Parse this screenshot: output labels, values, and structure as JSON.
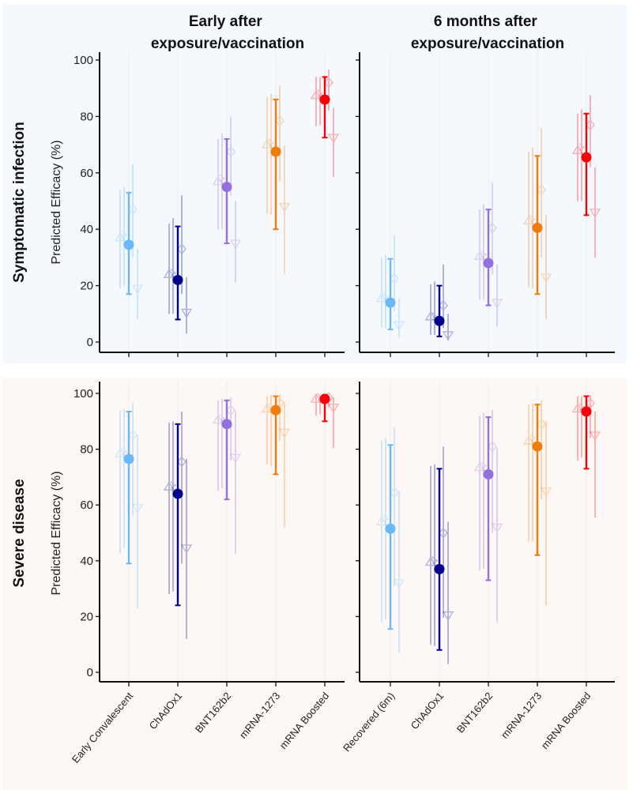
{
  "colors": {
    "row_backgrounds": [
      "#f5f9fe",
      "#fdf8f6"
    ],
    "groups": [
      "#6ab8f7",
      "#00008b",
      "#9370db",
      "#f07c0c",
      "#f80008"
    ]
  },
  "chart_data": {
    "type": "scatter",
    "subtype": "point-range (estimate with confidence interval), faceted 2x2",
    "column_titles": [
      "Early after\nexposure/vaccination",
      "6 months after\nexposure/vaccination"
    ],
    "row_titles": [
      "Symptomatic infection",
      "Severe disease"
    ],
    "ylabel": "Predicted Efficacy (%)",
    "ylim": [
      0,
      100
    ],
    "yticks": [
      0,
      20,
      40,
      60,
      80,
      100
    ],
    "grid": "faint vertical gridlines at categories",
    "marker_legend": {
      "main": "filled circle with capped error bar",
      "variant_1": "open up-triangle (faint)",
      "variant_2": "open arrow/x marker (faint)",
      "variant_3": "open diamond (faint)",
      "variant_4": "open down-triangle (faint)"
    },
    "panels": [
      {
        "row": "Symptomatic infection",
        "column": "Early after exposure/vaccination",
        "categories": [
          "Early Convalescent",
          "ChAdOx1",
          "BNT162b2",
          "mRNA-1273",
          "mRNA Boosted"
        ],
        "series": [
          {
            "name": "main",
            "values": [
              34.5,
              22,
              55,
              67.5,
              86
            ],
            "lower": [
              17,
              8,
              35,
              40,
              72.5
            ],
            "upper": [
              53,
              41,
              72,
              86,
              94
            ]
          },
          {
            "name": "variant_1",
            "values": [
              37,
              24,
              57,
              70,
              87.5
            ],
            "lower": [
              19,
              10,
              40,
              45.5,
              76.5
            ],
            "upper": [
              54,
              42,
              72,
              87,
              94
            ]
          },
          {
            "name": "variant_2",
            "values": [
              38,
              24.5,
              58,
              70.5,
              88
            ],
            "lower": [
              20,
              10,
              40,
              45,
              77
            ],
            "upper": [
              55,
              44,
              74,
              88,
              94
            ]
          },
          {
            "name": "variant_3",
            "values": [
              47,
              33,
              67.5,
              78.5,
              92
            ],
            "lower": [
              30,
              17,
              52,
              57,
              82
            ],
            "upper": [
              63,
              52,
              80,
              91,
              96.5
            ]
          },
          {
            "name": "variant_4",
            "values": [
              19,
              10.5,
              35,
              48,
              72.5
            ],
            "lower": [
              8,
              3,
              21,
              24,
              58.5
            ],
            "upper": [
              33,
              23,
              50,
              70,
              83
            ]
          }
        ]
      },
      {
        "row": "Symptomatic infection",
        "column": "6 months after exposure/vaccination",
        "categories": [
          "Recovered (6m)",
          "ChAdOx1",
          "BNT162b2",
          "mRNA-1273",
          "mRNA Boosted"
        ],
        "series": [
          {
            "name": "main",
            "values": [
              14,
              7.5,
              28,
              40.5,
              65.5
            ],
            "lower": [
              4.5,
              2,
              13,
              17,
              45
            ],
            "upper": [
              29.5,
              20,
              47,
              66,
              81
            ]
          },
          {
            "name": "variant_1",
            "values": [
              15.5,
              9,
              30.5,
              43,
              68
            ],
            "lower": [
              5,
              2.5,
              15,
              19.5,
              50
            ],
            "upper": [
              30,
              20.5,
              47,
              67.5,
              81
            ]
          },
          {
            "name": "variant_2",
            "values": [
              16,
              9,
              31,
              43.5,
              69
            ],
            "lower": [
              5,
              2.5,
              15,
              19,
              50
            ],
            "upper": [
              31,
              21.5,
              49,
              69,
              82.5
            ]
          },
          {
            "name": "variant_3",
            "values": [
              22.5,
              13,
              40.5,
              54,
              77
            ],
            "lower": [
              11,
              5,
              24,
              30,
              62
            ],
            "upper": [
              38,
              27.5,
              56.5,
              76,
              87.5
            ]
          },
          {
            "name": "variant_4",
            "values": [
              6,
              2.5,
              14,
              23,
              46
            ],
            "lower": [
              1.5,
              0.5,
              5.5,
              8,
              30
            ],
            "upper": [
              15.5,
              10,
              27.5,
              45,
              62
            ]
          }
        ]
      },
      {
        "row": "Severe disease",
        "column": "Early after exposure/vaccination",
        "categories": [
          "Early Convalescent",
          "ChAdOx1",
          "BNT162b2",
          "mRNA-1273",
          "mRNA Boosted"
        ],
        "series": [
          {
            "name": "main",
            "values": [
              76.5,
              64,
              89,
              94,
              98
            ],
            "lower": [
              39,
              24,
              62,
              71,
              90
            ],
            "upper": [
              93.5,
              89,
              97.5,
              99,
              99.5
            ]
          },
          {
            "name": "variant_1",
            "values": [
              78.5,
              66.5,
              90.5,
              94.5,
              98
            ],
            "lower": [
              42.5,
              28,
              65,
              74.5,
              92
            ],
            "upper": [
              94,
              89.5,
              97.5,
              99,
              99.5
            ]
          },
          {
            "name": "variant_2",
            "values": [
              79,
              67,
              91,
              95,
              98.5
            ],
            "lower": [
              44.5,
              29,
              66,
              74,
              92.5
            ],
            "upper": [
              94.5,
              90,
              98,
              99.5,
              99.5
            ]
          },
          {
            "name": "variant_3",
            "values": [
              85,
              75.5,
              94,
              96.5,
              98.5
            ],
            "lower": [
              56,
              39,
              76,
              83,
              95
            ],
            "upper": [
              96.5,
              93.5,
              98.5,
              99.5,
              99.5
            ]
          },
          {
            "name": "variant_4",
            "values": [
              59,
              44.5,
              77,
              86,
              95
            ],
            "lower": [
              23,
              12,
              42.5,
              52,
              80.5
            ],
            "upper": [
              85,
              76.5,
              93.5,
              97,
              98.5
            ]
          }
        ]
      },
      {
        "row": "Severe disease",
        "column": "6 months after exposure/vaccination",
        "categories": [
          "Recovered (6m)",
          "ChAdOx1",
          "BNT162b2",
          "mRNA-1273",
          "mRNA Boosted"
        ],
        "series": [
          {
            "name": "main",
            "values": [
              51.5,
              37,
              71,
              81,
              93.5
            ],
            "lower": [
              15.5,
              8,
              33,
              42,
              73
            ],
            "upper": [
              81.5,
              73,
              91.5,
              96,
              99
            ]
          },
          {
            "name": "variant_1",
            "values": [
              54,
              39.5,
              73.5,
              83,
              94.5
            ],
            "lower": [
              18,
              10,
              36.5,
              47,
              76
            ],
            "upper": [
              83,
              74,
              92,
              96,
              99
            ]
          },
          {
            "name": "variant_2",
            "values": [
              55,
              40,
              74,
              84,
              95
            ],
            "lower": [
              19,
              9.5,
              37,
              47,
              77
            ],
            "upper": [
              84,
              74.5,
              93,
              96.5,
              99
            ]
          },
          {
            "name": "variant_3",
            "values": [
              64.5,
              50,
              81,
              89,
              96.5
            ],
            "lower": [
              31,
              19.5,
              50,
              62,
              84
            ],
            "upper": [
              88,
              81,
              94,
              97.5,
              99.5
            ]
          },
          {
            "name": "variant_4",
            "values": [
              32,
              20.5,
              52,
              65,
              85
            ],
            "lower": [
              7,
              3,
              18,
              24,
              55.5
            ],
            "upper": [
              65,
              54,
              80.5,
              90,
              93.5
            ]
          }
        ]
      }
    ]
  }
}
